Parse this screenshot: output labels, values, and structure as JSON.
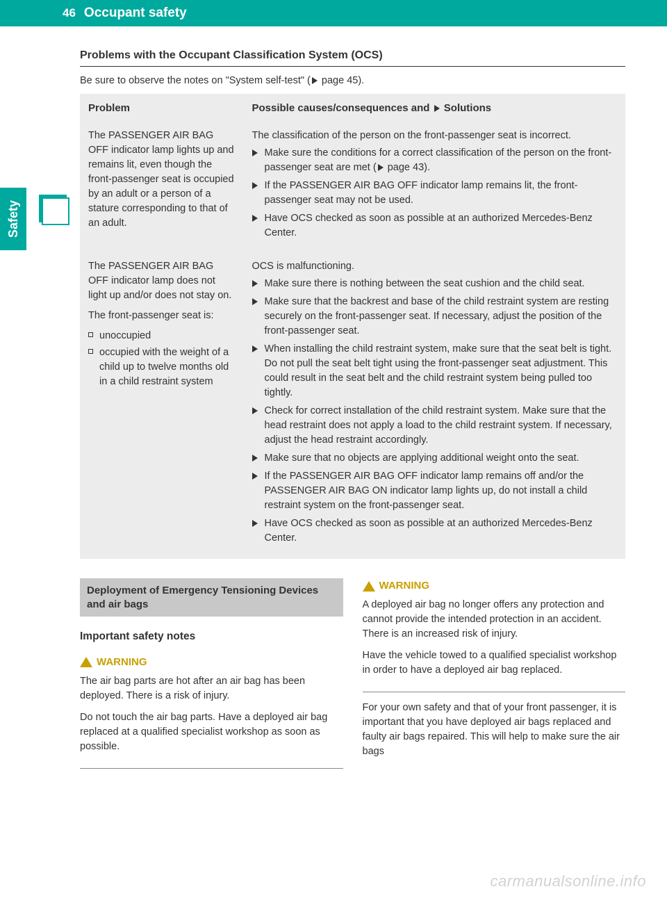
{
  "header": {
    "page_number": "46",
    "title": "Occupant safety"
  },
  "side_tab": "Safety",
  "section_title": "Problems with the Occupant Classification System (OCS)",
  "intro": {
    "prefix": "Be sure to observe the notes on \"System self-test\" (",
    "page_ref": " page 45).",
    "full": "Be sure to observe the notes on \"System self-test\" ( page 45)."
  },
  "table": {
    "headers": {
      "problem": "Problem",
      "solutions_prefix": "Possible causes/consequences and ",
      "solutions_suffix": " Solutions"
    },
    "rows": [
      {
        "problem": "The PASSENGER AIR BAG OFF indicator lamp lights up and remains lit, even though the front-passenger seat is occupied by an adult or a person of a stature corresponding to that of an adult.",
        "cause": "The classification of the person on the front-passenger seat is incorrect.",
        "solutions": [
          "Make sure the conditions for a correct classification of the person on the front-passenger seat are met ( page 43).",
          "If the PASSENGER AIR BAG OFF indicator lamp remains lit, the front-passenger seat may not be used.",
          "Have OCS checked as soon as possible at an authorized Mercedes-Benz Center."
        ]
      },
      {
        "problem_lines": [
          "The PASSENGER AIR BAG OFF indicator lamp does not light up and/or does not stay on.",
          "The front-passenger seat is:"
        ],
        "problem_bullets": [
          "unoccupied",
          "occupied with the weight of a child up to twelve months old in a child restraint system"
        ],
        "cause": "OCS is malfunctioning.",
        "solutions": [
          "Make sure there is nothing between the seat cushion and the child seat.",
          "Make sure that the backrest and base of the child restraint system are resting securely on the front-passenger seat. If necessary, adjust the position of the front-passenger seat.",
          "When installing the child restraint system, make sure that the seat belt is tight. Do not pull the seat belt tight using the front-passenger seat adjustment. This could result in the seat belt and the child restraint system being pulled too tightly.",
          "Check for correct installation of the child restraint system. Make sure that the head restraint does not apply a load to the child restraint system. If necessary, adjust the head restraint accordingly.",
          "Make sure that no objects are applying additional weight onto the seat.",
          "If the PASSENGER AIR BAG OFF indicator lamp remains off and/or the PASSENGER AIR BAG ON indicator lamp lights up, do not install a child restraint system on the front-passenger seat.",
          "Have OCS checked as soon as possible at an authorized Mercedes-Benz Center."
        ]
      }
    ]
  },
  "lower": {
    "gray_heading": "Deployment of Emergency Tensioning Devices and air bags",
    "sub_heading": "Important safety notes",
    "warning_label": "WARNING",
    "left_warning": {
      "p1": "The air bag parts are hot after an air bag has been deployed. There is a risk of injury.",
      "p2": "Do not touch the air bag parts. Have a deployed air bag replaced at a qualified specialist workshop as soon as possible."
    },
    "right_warning": {
      "p1": "A deployed air bag no longer offers any protection and cannot provide the intended protection in an accident. There is an increased risk of injury.",
      "p2": "Have the vehicle towed to a qualified specialist workshop in order to have a deployed air bag replaced."
    },
    "right_body": "For your own safety and that of your front passenger, it is important that you have deployed air bags replaced and faulty air bags repaired. This will help to make sure the air bags"
  },
  "watermark": "carmanualsonline.info",
  "colors": {
    "teal": "#00a99d",
    "gray_bg": "#ececec",
    "heading_gray": "#c8c8c8",
    "warning_color": "#c8a000",
    "text": "#333333"
  }
}
